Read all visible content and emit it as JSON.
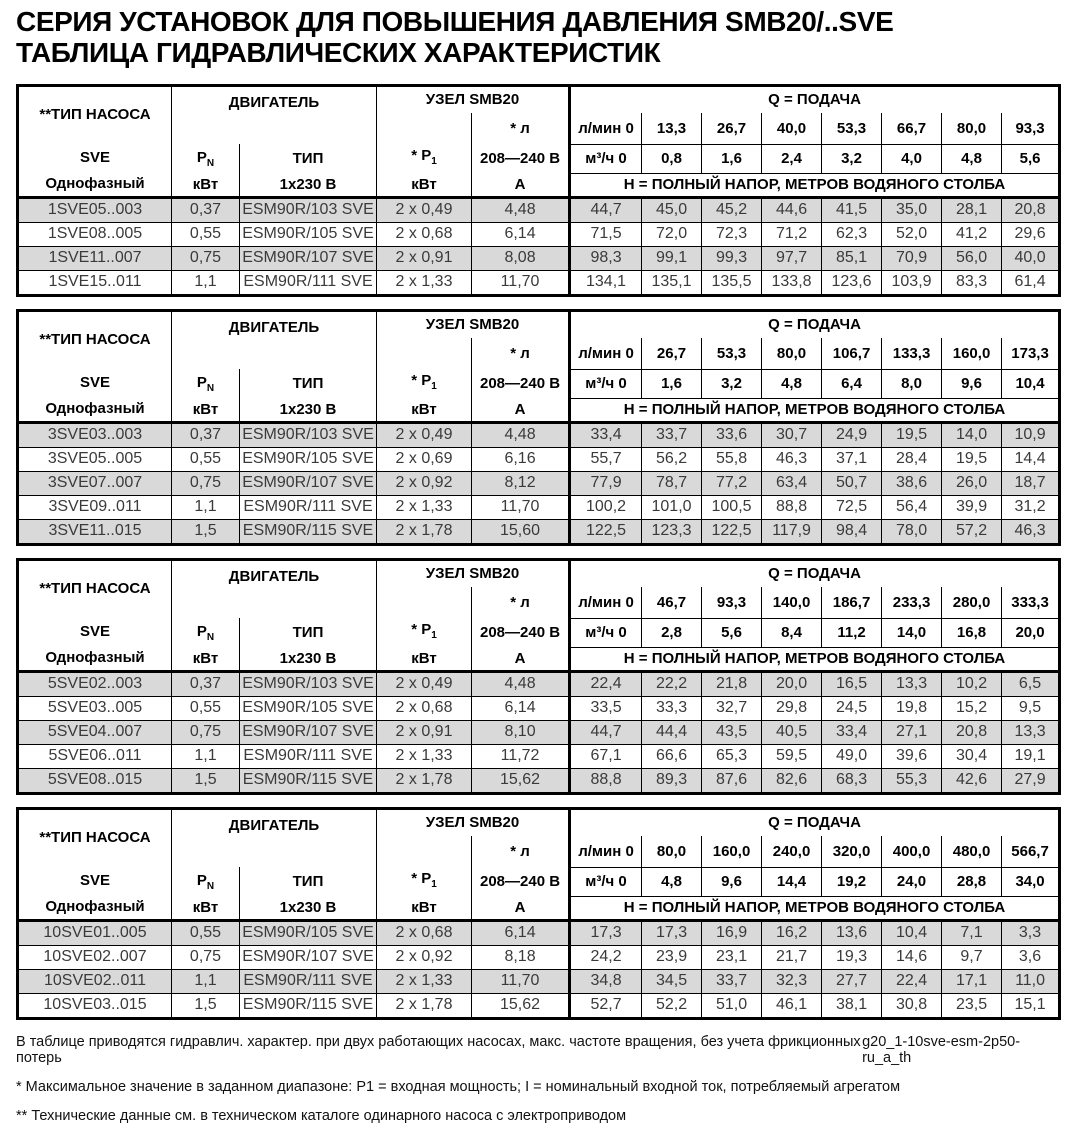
{
  "page": {
    "title_line1": "СЕРИЯ УСТАНОВОК ДЛЯ ПОВЫШЕНИЯ ДАВЛЕНИЯ SMB20/..SVE",
    "title_line2": "ТАБЛИЦА ГИДРАВЛИЧЕСКИХ ХАРАКТЕРИСТИК"
  },
  "header_labels": {
    "pump_type": "**ТИП НАСОСА",
    "series": "SVE",
    "phase": "Однофазный",
    "motor_group": "ДВИГАТЕЛЬ",
    "pn_main": "P",
    "pn_sub": "N",
    "kw": "кВт",
    "motor_type": "ТИП",
    "motor_voltage": "1x230  В",
    "unit_group": "УЗЕЛ SMB20",
    "p1_main": "* P",
    "p1_sub": "1",
    "current_label": "* л",
    "voltage_range": "208—240  В",
    "ampere": "А",
    "q_group": "Q  = ПОДАЧА",
    "lmin_zero": "л/мин 0",
    "m3h_zero": "м³/ч 0",
    "head_note": "Н  = ПОЛНЫЙ НАПОР, МЕТРОВ ВОДЯНОГО СТОЛБА"
  },
  "tables": [
    {
      "q_lmin": [
        "13,3",
        "26,7",
        "40,0",
        "53,3",
        "66,7",
        "80,0",
        "93,3"
      ],
      "q_m3h": [
        "0,8",
        "1,6",
        "2,4",
        "3,2",
        "4,0",
        "4,8",
        "5,6"
      ],
      "rows": [
        {
          "model": "1SVE05..003",
          "pn": "0,37",
          "motor": "ESM90R/103 SVE",
          "p1": "2 x 0,49",
          "amps": "4,48",
          "h": [
            "44,7",
            "45,0",
            "45,2",
            "44,6",
            "41,5",
            "35,0",
            "28,1",
            "20,8"
          ]
        },
        {
          "model": "1SVE08..005",
          "pn": "0,55",
          "motor": "ESM90R/105 SVE",
          "p1": "2 x 0,68",
          "amps": "6,14",
          "h": [
            "71,5",
            "72,0",
            "72,3",
            "71,2",
            "62,3",
            "52,0",
            "41,2",
            "29,6"
          ]
        },
        {
          "model": "1SVE11..007",
          "pn": "0,75",
          "motor": "ESM90R/107 SVE",
          "p1": "2 x 0,91",
          "amps": "8,08",
          "h": [
            "98,3",
            "99,1",
            "99,3",
            "97,7",
            "85,1",
            "70,9",
            "56,0",
            "40,0"
          ]
        },
        {
          "model": "1SVE15..011",
          "pn": "1,1",
          "motor": "ESM90R/111 SVE",
          "p1": "2 x 1,33",
          "amps": "11,70",
          "h": [
            "134,1",
            "135,1",
            "135,5",
            "133,8",
            "123,6",
            "103,9",
            "83,3",
            "61,4"
          ]
        }
      ]
    },
    {
      "q_lmin": [
        "26,7",
        "53,3",
        "80,0",
        "106,7",
        "133,3",
        "160,0",
        "173,3"
      ],
      "q_m3h": [
        "1,6",
        "3,2",
        "4,8",
        "6,4",
        "8,0",
        "9,6",
        "10,4"
      ],
      "rows": [
        {
          "model": "3SVE03..003",
          "pn": "0,37",
          "motor": "ESM90R/103 SVE",
          "p1": "2 x 0,49",
          "amps": "4,48",
          "h": [
            "33,4",
            "33,7",
            "33,6",
            "30,7",
            "24,9",
            "19,5",
            "14,0",
            "10,9"
          ]
        },
        {
          "model": "3SVE05..005",
          "pn": "0,55",
          "motor": "ESM90R/105 SVE",
          "p1": "2 x 0,69",
          "amps": "6,16",
          "h": [
            "55,7",
            "56,2",
            "55,8",
            "46,3",
            "37,1",
            "28,4",
            "19,5",
            "14,4"
          ]
        },
        {
          "model": "3SVE07..007",
          "pn": "0,75",
          "motor": "ESM90R/107 SVE",
          "p1": "2 x 0,92",
          "amps": "8,12",
          "h": [
            "77,9",
            "78,7",
            "77,2",
            "63,4",
            "50,7",
            "38,6",
            "26,0",
            "18,7"
          ]
        },
        {
          "model": "3SVE09..011",
          "pn": "1,1",
          "motor": "ESM90R/111 SVE",
          "p1": "2 x 1,33",
          "amps": "11,70",
          "h": [
            "100,2",
            "101,0",
            "100,5",
            "88,8",
            "72,5",
            "56,4",
            "39,9",
            "31,2"
          ]
        },
        {
          "model": "3SVE11..015",
          "pn": "1,5",
          "motor": "ESM90R/115 SVE",
          "p1": "2 x 1,78",
          "amps": "15,60",
          "h": [
            "122,5",
            "123,3",
            "122,5",
            "117,9",
            "98,4",
            "78,0",
            "57,2",
            "46,3"
          ]
        }
      ]
    },
    {
      "q_lmin": [
        "46,7",
        "93,3",
        "140,0",
        "186,7",
        "233,3",
        "280,0",
        "333,3"
      ],
      "q_m3h": [
        "2,8",
        "5,6",
        "8,4",
        "11,2",
        "14,0",
        "16,8",
        "20,0"
      ],
      "rows": [
        {
          "model": "5SVE02..003",
          "pn": "0,37",
          "motor": "ESM90R/103 SVE",
          "p1": "2 x 0,49",
          "amps": "4,48",
          "h": [
            "22,4",
            "22,2",
            "21,8",
            "20,0",
            "16,5",
            "13,3",
            "10,2",
            "6,5"
          ]
        },
        {
          "model": "5SVE03..005",
          "pn": "0,55",
          "motor": "ESM90R/105 SVE",
          "p1": "2 x 0,68",
          "amps": "6,14",
          "h": [
            "33,5",
            "33,3",
            "32,7",
            "29,8",
            "24,5",
            "19,8",
            "15,2",
            "9,5"
          ]
        },
        {
          "model": "5SVE04..007",
          "pn": "0,75",
          "motor": "ESM90R/107 SVE",
          "p1": "2 x 0,91",
          "amps": "8,10",
          "h": [
            "44,7",
            "44,4",
            "43,5",
            "40,5",
            "33,4",
            "27,1",
            "20,8",
            "13,3"
          ]
        },
        {
          "model": "5SVE06..011",
          "pn": "1,1",
          "motor": "ESM90R/111 SVE",
          "p1": "2 x 1,33",
          "amps": "11,72",
          "h": [
            "67,1",
            "66,6",
            "65,3",
            "59,5",
            "49,0",
            "39,6",
            "30,4",
            "19,1"
          ]
        },
        {
          "model": "5SVE08..015",
          "pn": "1,5",
          "motor": "ESM90R/115 SVE",
          "p1": "2 x 1,78",
          "amps": "15,62",
          "h": [
            "88,8",
            "89,3",
            "87,6",
            "82,6",
            "68,3",
            "55,3",
            "42,6",
            "27,9"
          ]
        }
      ]
    },
    {
      "q_lmin": [
        "80,0",
        "160,0",
        "240,0",
        "320,0",
        "400,0",
        "480,0",
        "566,7"
      ],
      "q_m3h": [
        "4,8",
        "9,6",
        "14,4",
        "19,2",
        "24,0",
        "28,8",
        "34,0"
      ],
      "rows": [
        {
          "model": "10SVE01..005",
          "pn": "0,55",
          "motor": "ESM90R/105 SVE",
          "p1": "2 x 0,68",
          "amps": "6,14",
          "h": [
            "17,3",
            "17,3",
            "16,9",
            "16,2",
            "13,6",
            "10,4",
            "7,1",
            "3,3"
          ]
        },
        {
          "model": "10SVE02..007",
          "pn": "0,75",
          "motor": "ESM90R/107 SVE",
          "p1": "2 x 0,92",
          "amps": "8,18",
          "h": [
            "24,2",
            "23,9",
            "23,1",
            "21,7",
            "19,3",
            "14,6",
            "9,7",
            "3,6"
          ]
        },
        {
          "model": "10SVE02..011",
          "pn": "1,1",
          "motor": "ESM90R/111 SVE",
          "p1": "2 x 1,33",
          "amps": "11,70",
          "h": [
            "34,8",
            "34,5",
            "33,7",
            "32,3",
            "27,7",
            "22,4",
            "17,1",
            "11,0"
          ]
        },
        {
          "model": "10SVE03..015",
          "pn": "1,5",
          "motor": "ESM90R/115 SVE",
          "p1": "2 x 1,78",
          "amps": "15,62",
          "h": [
            "52,7",
            "52,2",
            "51,0",
            "46,1",
            "38,1",
            "30,8",
            "23,5",
            "15,1"
          ]
        }
      ]
    }
  ],
  "footnotes": {
    "general": "В таблице приводятся гидравлич. характер. при двух работающих насосах, макс. частоте вращения, без учета фрикционных потерь",
    "doc_code": "g20_1-10sve-esm-2p50-ru_a_th",
    "star": "*  Максимальное значение в заданном диапазоне: P1 = входная мощность; I = номинальный входной ток, потребляемый агрегатом",
    "double_star": "** Технические данные см. в техническом каталоге одинарного насоса с электроприводом"
  }
}
